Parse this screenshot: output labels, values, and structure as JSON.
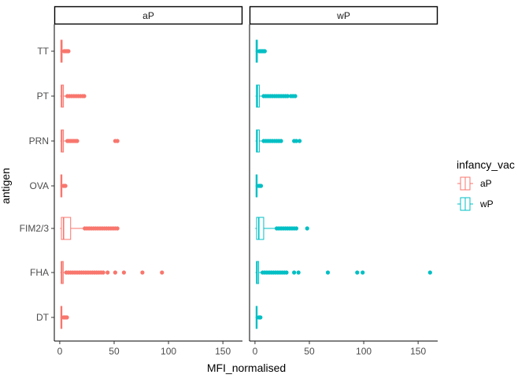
{
  "chart_data": {
    "type": "boxplot",
    "orientation": "horizontal",
    "xlabel": "MFI_normalised",
    "ylabel": "antigen",
    "xlim": [
      -5,
      168
    ],
    "x_ticks": [
      0,
      50,
      100,
      150
    ],
    "categories": [
      "DT",
      "FHA",
      "FIM2/3",
      "OVA",
      "PRN",
      "PT",
      "TT"
    ],
    "facets": [
      {
        "label": "aP",
        "color": "#F8766D",
        "boxes": [
          {
            "antigen": "DT",
            "min": 0.5,
            "q1": 1.0,
            "median": 1.4,
            "q3": 2.0,
            "whisker_high": 3.0,
            "outliers": [
              3.5,
              4.2,
              5.0,
              5.8,
              6.6
            ]
          },
          {
            "antigen": "FHA",
            "min": 0.5,
            "q1": 1.3,
            "median": 2.0,
            "q3": 3.2,
            "whisker_high": 5.5,
            "outliers": [
              6,
              8,
              10,
              12,
              14,
              16,
              18,
              20,
              22,
              24,
              26,
              28,
              30,
              32,
              34,
              36,
              38,
              40,
              44,
              51,
              59,
              76,
              94
            ]
          },
          {
            "antigen": "FIM2/3",
            "min": 0.3,
            "q1": 1.5,
            "median": 3.5,
            "q3": 10.0,
            "whisker_high": 22.0,
            "outliers": [
              23,
              25,
              27,
              29,
              31,
              33,
              35,
              37,
              39,
              41,
              43,
              45,
              47,
              49,
              51,
              53
            ]
          },
          {
            "antigen": "OVA",
            "min": 0.5,
            "q1": 1.0,
            "median": 1.3,
            "q3": 2.0,
            "whisker_high": 3.0,
            "outliers": [
              3.5,
              4.3,
              5.2
            ]
          },
          {
            "antigen": "PRN",
            "min": 0.5,
            "q1": 1.3,
            "median": 2.0,
            "q3": 3.4,
            "whisker_high": 6.0,
            "outliers": [
              7,
              8.5,
              10,
              11.5,
              13,
              14.5,
              16,
              51,
              53
            ]
          },
          {
            "antigen": "PT",
            "min": 0.5,
            "q1": 1.3,
            "median": 2.0,
            "q3": 3.4,
            "whisker_high": 6.0,
            "outliers": [
              7,
              9,
              11,
              13,
              15,
              17,
              19,
              21,
              22.5
            ]
          },
          {
            "antigen": "TT",
            "min": 0.5,
            "q1": 1.0,
            "median": 1.5,
            "q3": 2.2,
            "whisker_high": 3.5,
            "outliers": [
              4,
              5,
              6,
              7,
              8
            ]
          }
        ]
      },
      {
        "label": "wP",
        "color": "#00BFC4",
        "boxes": [
          {
            "antigen": "DT",
            "min": 0.5,
            "q1": 1.0,
            "median": 1.4,
            "q3": 2.0,
            "whisker_high": 3.0,
            "outliers": [
              3.5,
              4.3,
              5.0
            ]
          },
          {
            "antigen": "FHA",
            "min": 0.5,
            "q1": 1.3,
            "median": 2.0,
            "q3": 3.4,
            "whisker_high": 6.0,
            "outliers": [
              7,
              9,
              11,
              13,
              15,
              17,
              19,
              21,
              23,
              25,
              27,
              29,
              36,
              40,
              67,
              94,
              99,
              161
            ]
          },
          {
            "antigen": "FIM2/3",
            "min": 0.3,
            "q1": 1.5,
            "median": 3.5,
            "q3": 8.0,
            "whisker_high": 19.0,
            "outliers": [
              20,
              22,
              24,
              26,
              28,
              30,
              32,
              34,
              36,
              38,
              48
            ]
          },
          {
            "antigen": "OVA",
            "min": 0.5,
            "q1": 1.0,
            "median": 1.3,
            "q3": 2.0,
            "whisker_high": 3.0,
            "outliers": [
              3.5,
              4.5,
              5.5
            ]
          },
          {
            "antigen": "PRN",
            "min": 0.5,
            "q1": 1.3,
            "median": 2.0,
            "q3": 4.0,
            "whisker_high": 7.0,
            "outliers": [
              8,
              10,
              12,
              14,
              16,
              18,
              20,
              22,
              24,
              36,
              38,
              41
            ]
          },
          {
            "antigen": "PT",
            "min": 0.5,
            "q1": 1.3,
            "median": 2.2,
            "q3": 4.0,
            "whisker_high": 7.0,
            "outliers": [
              8,
              10,
              12,
              14,
              16,
              18,
              20,
              22,
              24,
              26,
              28,
              30,
              33,
              35,
              37
            ]
          },
          {
            "antigen": "TT",
            "min": 0.5,
            "q1": 1.0,
            "median": 1.5,
            "q3": 2.2,
            "whisker_high": 3.5,
            "outliers": [
              4,
              5,
              6,
              7,
              8,
              9
            ]
          }
        ]
      }
    ],
    "legend": {
      "title": "infancy_vac",
      "placement": "right",
      "items": [
        {
          "label": "aP",
          "color": "#F8766D"
        },
        {
          "label": "wP",
          "color": "#00BFC4"
        }
      ]
    },
    "grid": false
  }
}
